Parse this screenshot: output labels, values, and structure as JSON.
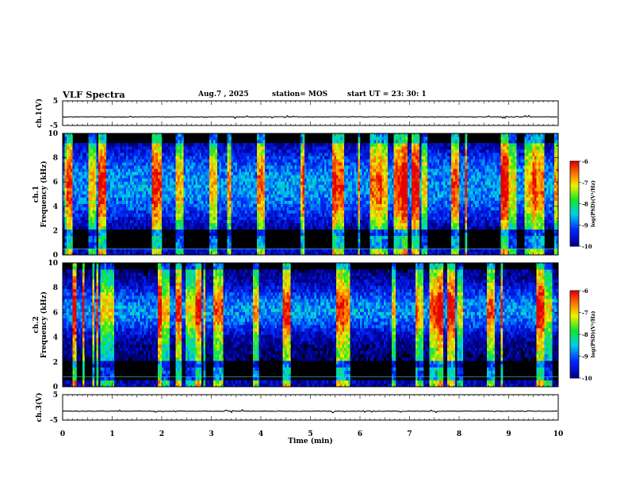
{
  "header": {
    "title": "VLF Spectra",
    "date": "Aug.7  , 2025",
    "station": "station= MOS",
    "start_ut": "start  UT  =    23: 30: 1"
  },
  "chart_data": [
    {
      "type": "line",
      "name": "ch1-waveform",
      "ylabel": "ch.1(V)",
      "yticks": [
        "5",
        "-5"
      ],
      "ylim": [
        -5,
        5
      ],
      "xlim": [
        0,
        10
      ],
      "baseline": -1.5
    },
    {
      "type": "heatmap",
      "name": "ch1-spectrogram",
      "ylabel": "ch.1\nFrequency  (kHz)",
      "ylabel_lines": [
        "ch.1",
        "Frequency  (kHz)"
      ],
      "yticks": [
        "0",
        "2",
        "4",
        "6",
        "8",
        "10"
      ],
      "ylim": [
        0,
        10
      ],
      "xlim": [
        0,
        10
      ],
      "colorbar": {
        "label": "log(PSD)(V²/Hz)",
        "ticks": [
          "-6",
          "-7",
          "-8",
          "-9",
          "-10"
        ],
        "range": [
          -10,
          -6
        ]
      }
    },
    {
      "type": "heatmap",
      "name": "ch2-spectrogram",
      "ylabel": "ch.2\nFrequency  (kHz)",
      "ylabel_lines": [
        "ch.2",
        "Frequency  (kHz)"
      ],
      "yticks": [
        "0",
        "2",
        "4",
        "6",
        "8",
        "10"
      ],
      "ylim": [
        0,
        10
      ],
      "xlim": [
        0,
        10
      ],
      "colorbar": {
        "label": "log(PSD)(V²/Hz)",
        "ticks": [
          "-6",
          "-7",
          "-8",
          "-9",
          "-10"
        ],
        "range": [
          -10,
          -6
        ]
      }
    },
    {
      "type": "line",
      "name": "ch3-waveform",
      "ylabel": "ch.3(V)",
      "yticks": [
        "5",
        "-5"
      ],
      "ylim": [
        -5,
        5
      ],
      "xlim": [
        0,
        10
      ],
      "baseline": -1.5
    }
  ],
  "xaxis": {
    "label": "Time  (min)",
    "ticks": [
      "0",
      "1",
      "2",
      "3",
      "4",
      "5",
      "6",
      "7",
      "8",
      "9",
      "10"
    ],
    "range": [
      0,
      10
    ]
  },
  "colors": {
    "background": "#ffffff",
    "axis": "#000000",
    "spectrogram_low": "#000000",
    "spectrogram_high": "#ff0000"
  }
}
